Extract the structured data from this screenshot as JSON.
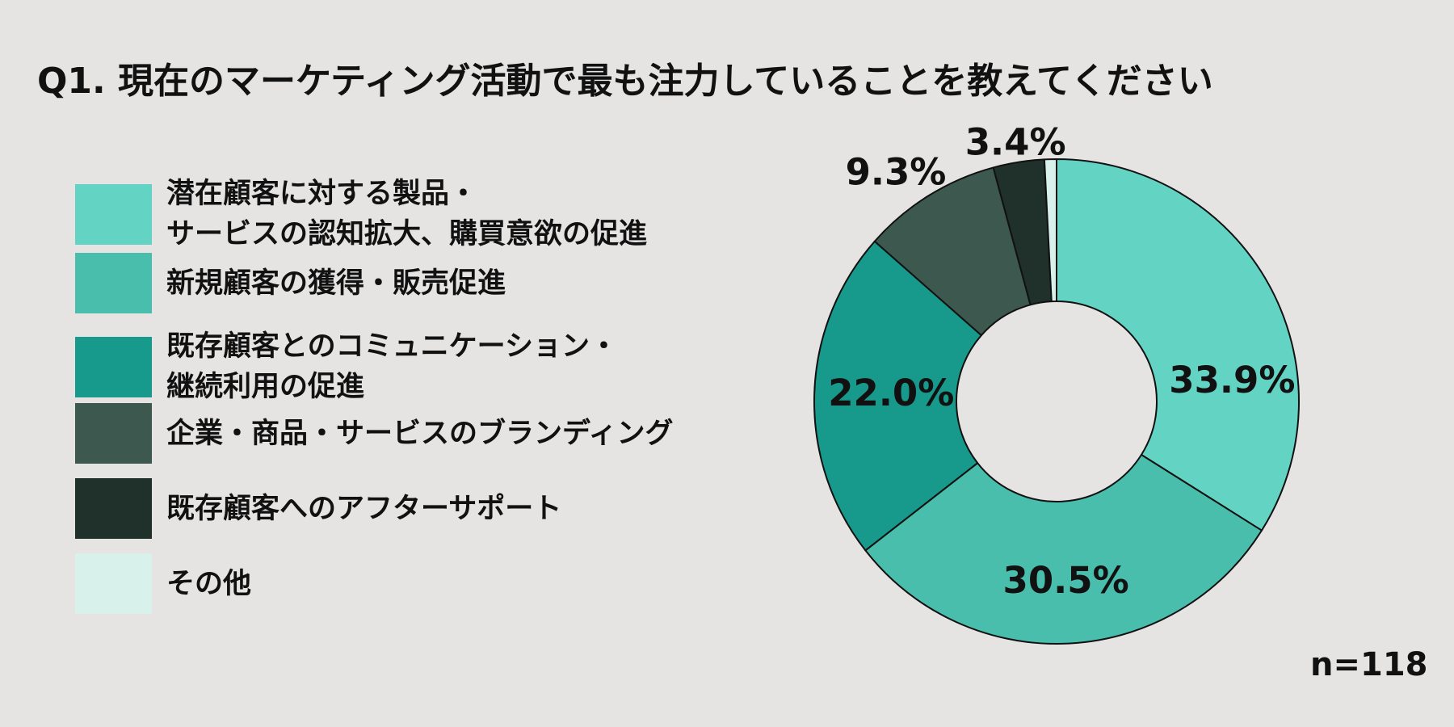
{
  "title": "Q1. 現在のマーケティング活動で最も注力していることを教えてください",
  "sample_size": "n=118",
  "colors": {
    "background": "#E5E4E3",
    "text": "#111111",
    "slice_outline": "#111111"
  },
  "legend": {
    "items": [
      {
        "lines": [
          "潜在顧客に対する製品・",
          "サービスの認知拡大、購買意欲の促進"
        ],
        "color": "#63D4C4"
      },
      {
        "lines": [
          "新規顧客の獲得・販売促進"
        ],
        "color": "#4ABEAC"
      },
      {
        "lines": [
          "既存顧客とのコミュニケーション・",
          "継続利用の促進"
        ],
        "color": "#179A8B"
      },
      {
        "lines": [
          "企業・商品・サービスのブランディング"
        ],
        "color": "#3C584F"
      },
      {
        "lines": [
          "既存顧客へのアフターサポート"
        ],
        "color": "#20302B"
      },
      {
        "lines": [
          "その他"
        ],
        "color": "#D9F1EB"
      }
    ]
  },
  "chart_data": {
    "type": "pie",
    "subtype": "donut",
    "title": "Q1. 現在のマーケティング活動で最も注力していることを教えてください",
    "start_angle": "top, clockwise",
    "legend_position": "left",
    "annotation": "n=118",
    "categories": [
      "潜在顧客に対する製品・サービスの認知拡大、購買意欲の促進",
      "新規顧客の獲得・販売促進",
      "既存顧客とのコミュニケーション・継続利用の促進",
      "企業・商品・サービスのブランディング",
      "既存顧客へのアフターサポート",
      "その他"
    ],
    "values": [
      33.9,
      30.5,
      22.0,
      9.3,
      3.4,
      0.8
    ],
    "display_labels": [
      "33.9%",
      "30.5%",
      "22.0%",
      "9.3%",
      "3.4%",
      ""
    ],
    "colors": [
      "#63D4C4",
      "#4ABEAC",
      "#179A8B",
      "#3C584F",
      "#20302B",
      "#D9F1EB"
    ]
  }
}
